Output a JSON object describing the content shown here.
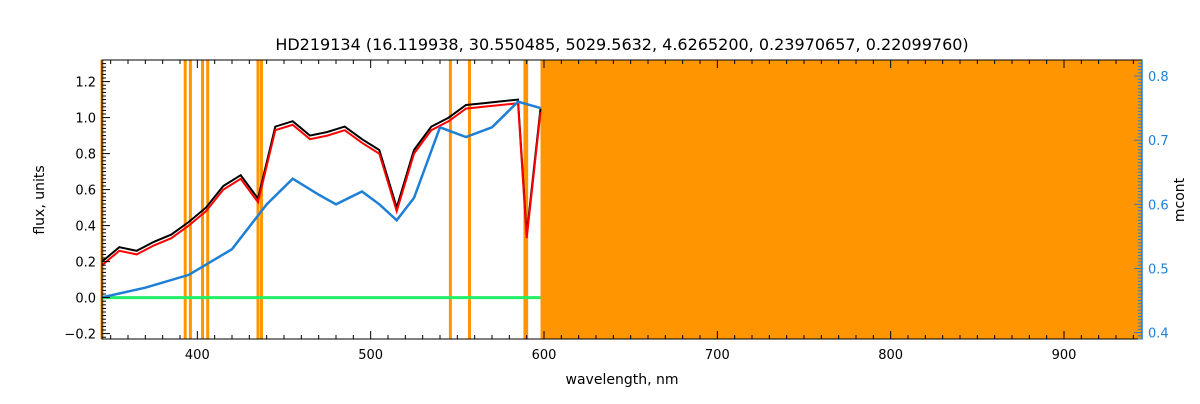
{
  "chart_data": {
    "type": "line",
    "title": "HD219134    (16.119938, 30.550485, 5029.5632, 4.6265200, 0.23970657, 0.22099760)",
    "xlabel": "wavelength, nm",
    "ylabel": "flux, units",
    "y2label": "mcont",
    "xlim": [
      345,
      945
    ],
    "ylim": [
      -0.23,
      1.32
    ],
    "y2lim": [
      0.39,
      0.825
    ],
    "x_ticks": [
      400,
      500,
      600,
      700,
      800,
      900
    ],
    "y_ticks": [
      -0.2,
      0.0,
      0.2,
      0.4,
      0.6,
      0.8,
      1.0,
      1.2
    ],
    "y2_ticks": [
      0.4,
      0.5,
      0.6,
      0.7,
      0.8
    ],
    "masked_lines": [
      345,
      393,
      396,
      403,
      406,
      435,
      437,
      546,
      557,
      589,
      590
    ],
    "masked_region": [
      598,
      945
    ],
    "colors": {
      "observed": "#000000",
      "model": "#ff0000",
      "continuum": "#1e7fd6",
      "residual": "#22ee66",
      "mask": "#ff9500"
    },
    "series": [
      {
        "x": [
          345,
          355,
          365,
          375,
          385,
          395,
          405,
          415,
          425,
          435,
          445,
          455,
          465,
          475,
          485,
          495,
          505,
          515,
          525,
          535,
          545,
          555,
          565,
          575,
          585,
          590,
          598
        ],
        "values": [
          0.2,
          0.28,
          0.26,
          0.31,
          0.35,
          0.42,
          0.5,
          0.62,
          0.68,
          0.55,
          0.95,
          0.98,
          0.9,
          0.92,
          0.95,
          0.88,
          0.82,
          0.5,
          0.82,
          0.95,
          1.0,
          1.07,
          1.08,
          1.09,
          1.1,
          0.35,
          1.05
        ]
      },
      {
        "x": [
          345,
          355,
          365,
          375,
          385,
          395,
          405,
          415,
          425,
          435,
          445,
          455,
          465,
          475,
          485,
          495,
          505,
          515,
          525,
          535,
          545,
          555,
          565,
          575,
          585,
          590,
          598
        ],
        "values": [
          0.18,
          0.26,
          0.24,
          0.29,
          0.33,
          0.4,
          0.48,
          0.6,
          0.66,
          0.53,
          0.93,
          0.96,
          0.88,
          0.9,
          0.93,
          0.86,
          0.8,
          0.48,
          0.8,
          0.93,
          0.98,
          1.05,
          1.06,
          1.07,
          1.08,
          0.33,
          1.03
        ]
      },
      {
        "x": [
          345,
          370,
          395,
          420,
          440,
          455,
          470,
          480,
          495,
          505,
          515,
          525,
          540,
          555,
          570,
          585,
          598
        ],
        "values": [
          0.455,
          0.47,
          0.49,
          0.53,
          0.6,
          0.64,
          0.615,
          0.6,
          0.62,
          0.6,
          0.575,
          0.61,
          0.72,
          0.705,
          0.72,
          0.76,
          0.75
        ]
      },
      {
        "x": [
          345,
          400,
          450,
          500,
          550,
          598
        ],
        "values": [
          0.0,
          0.0,
          0.0,
          0.0,
          0.0,
          0.0
        ]
      }
    ]
  }
}
